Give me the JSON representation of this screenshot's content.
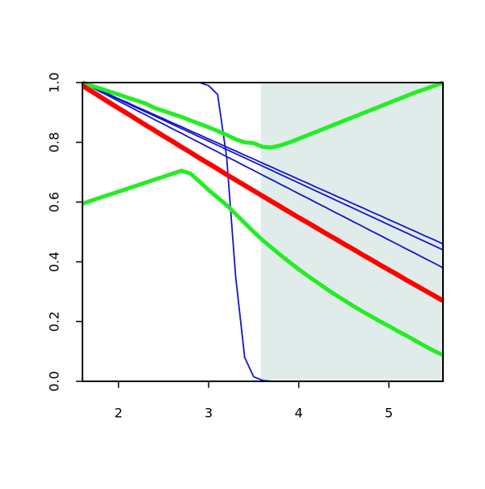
{
  "chart_data": {
    "type": "line",
    "x": [
      1.6,
      1.7,
      1.8,
      1.9,
      2.0,
      2.1,
      2.2,
      2.3,
      2.4,
      2.5,
      2.6,
      2.7,
      2.8,
      2.9,
      3.0,
      3.1,
      3.2,
      3.3,
      3.4,
      3.5,
      3.6,
      3.7,
      3.8,
      3.9,
      4.0,
      4.1,
      4.2,
      4.3,
      4.4,
      4.5,
      4.6,
      4.7,
      4.8,
      4.9,
      5.0,
      5.1,
      5.2,
      5.3,
      5.4,
      5.5,
      5.6
    ],
    "xlim": [
      1.6,
      5.6
    ],
    "ylim": [
      0,
      1
    ],
    "xticks": [
      2,
      3,
      4,
      5
    ],
    "yticks": [
      {
        "value": 0,
        "label": "0.0"
      },
      0.2,
      0.4,
      0.6,
      0.8,
      {
        "value": 1,
        "label": "1.0"
      }
    ],
    "shaded_region": [
      3.58,
      5.6
    ],
    "shade_color": "#e0ecea",
    "series": [
      {
        "color": "#1414d2",
        "width": 1.8,
        "values": [
          1,
          1,
          1,
          1,
          1,
          1,
          1,
          1,
          1,
          1,
          1,
          1,
          1,
          1,
          0.99,
          0.96,
          0.75,
          0.35,
          0.08,
          0.015,
          0.003,
          0,
          0,
          0,
          0,
          0,
          0,
          0,
          0,
          0,
          0,
          0,
          0,
          0,
          0,
          0,
          0,
          0,
          0,
          0,
          0
        ]
      },
      {
        "color": "#1414d2",
        "width": 1.8,
        "values": [
          1,
          0.987,
          0.973,
          0.96,
          0.946,
          0.933,
          0.919,
          0.906,
          0.892,
          0.879,
          0.865,
          0.852,
          0.838,
          0.825,
          0.811,
          0.798,
          0.784,
          0.771,
          0.757,
          0.744,
          0.73,
          0.717,
          0.703,
          0.69,
          0.676,
          0.663,
          0.649,
          0.636,
          0.622,
          0.609,
          0.595,
          0.582,
          0.568,
          0.555,
          0.541,
          0.528,
          0.514,
          0.501,
          0.487,
          0.474,
          0.46
        ]
      },
      {
        "color": "#1414d2",
        "width": 1.8,
        "values": [
          1,
          0.986,
          0.972,
          0.958,
          0.944,
          0.93,
          0.916,
          0.902,
          0.888,
          0.874,
          0.86,
          0.846,
          0.832,
          0.818,
          0.804,
          0.79,
          0.776,
          0.762,
          0.748,
          0.734,
          0.72,
          0.706,
          0.692,
          0.678,
          0.664,
          0.65,
          0.636,
          0.622,
          0.608,
          0.594,
          0.58,
          0.566,
          0.552,
          0.538,
          0.524,
          0.51,
          0.496,
          0.482,
          0.468,
          0.454,
          0.44
        ]
      },
      {
        "color": "#1414d2",
        "width": 1.8,
        "values": [
          1,
          0.985,
          0.969,
          0.954,
          0.938,
          0.923,
          0.907,
          0.892,
          0.876,
          0.861,
          0.845,
          0.83,
          0.814,
          0.799,
          0.783,
          0.768,
          0.752,
          0.737,
          0.721,
          0.706,
          0.69,
          0.675,
          0.659,
          0.644,
          0.628,
          0.613,
          0.597,
          0.582,
          0.566,
          0.551,
          0.535,
          0.52,
          0.504,
          0.489,
          0.473,
          0.458,
          0.442,
          0.427,
          0.411,
          0.396,
          0.38
        ]
      },
      {
        "color": "#22ee22",
        "width": 5,
        "values": [
          1,
          0.99,
          0.98,
          0.97,
          0.96,
          0.95,
          0.94,
          0.93,
          0.915,
          0.905,
          0.895,
          0.885,
          0.873,
          0.862,
          0.85,
          0.838,
          0.825,
          0.81,
          0.8,
          0.797,
          0.785,
          0.783,
          0.79,
          0.8,
          0.812,
          0.824,
          0.836,
          0.848,
          0.86,
          0.872,
          0.884,
          0.896,
          0.908,
          0.92,
          0.932,
          0.944,
          0.956,
          0.968,
          0.978,
          0.989,
          1
        ]
      },
      {
        "color": "#22ee22",
        "width": 5,
        "values": [
          0.595,
          0.605,
          0.615,
          0.625,
          0.635,
          0.645,
          0.655,
          0.665,
          0.675,
          0.685,
          0.695,
          0.705,
          0.695,
          0.668,
          0.64,
          0.615,
          0.59,
          0.56,
          0.53,
          0.5,
          0.472,
          0.447,
          0.422,
          0.398,
          0.375,
          0.353,
          0.332,
          0.311,
          0.291,
          0.272,
          0.253,
          0.235,
          0.218,
          0.201,
          0.185,
          0.168,
          0.152,
          0.135,
          0.118,
          0.102,
          0.088
        ]
      },
      {
        "color": "#ff0000",
        "width": 6,
        "values": [
          0.99,
          0.971,
          0.952,
          0.933,
          0.914,
          0.896,
          0.877,
          0.858,
          0.84,
          0.821,
          0.803,
          0.784,
          0.766,
          0.747,
          0.729,
          0.711,
          0.692,
          0.674,
          0.656,
          0.638,
          0.62,
          0.602,
          0.584,
          0.566,
          0.548,
          0.531,
          0.513,
          0.495,
          0.478,
          0.46,
          0.443,
          0.425,
          0.408,
          0.39,
          0.373,
          0.356,
          0.338,
          0.321,
          0.304,
          0.287,
          0.27
        ]
      }
    ]
  }
}
